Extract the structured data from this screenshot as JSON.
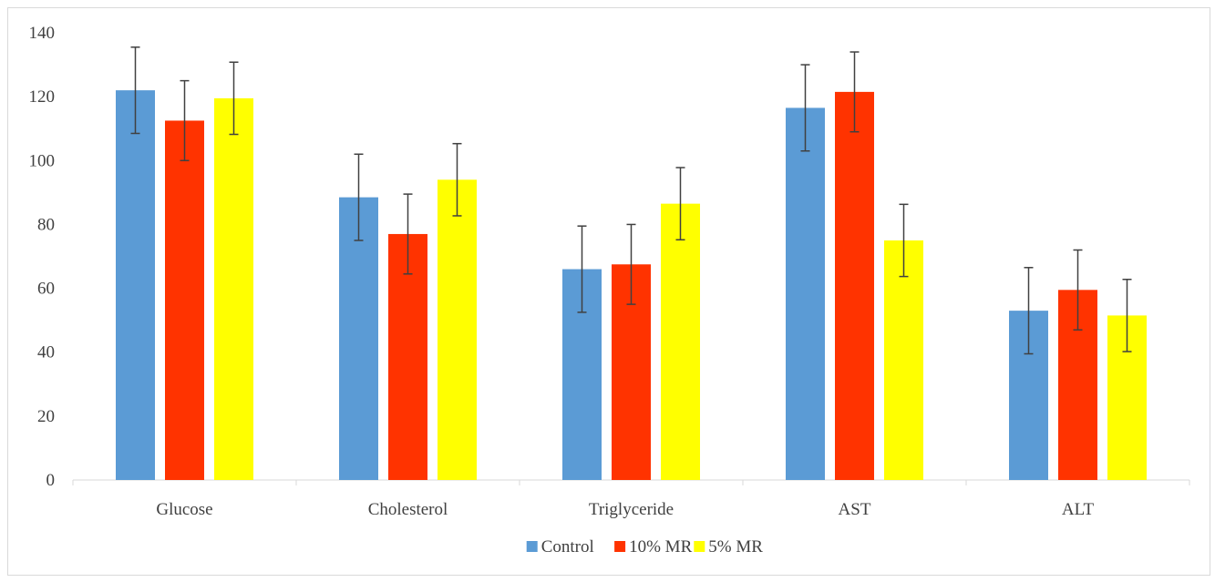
{
  "chart_data": {
    "type": "bar",
    "title": "",
    "xlabel": "",
    "ylabel": "",
    "categories": [
      "Glucose",
      "Cholesterol",
      "Triglyceride",
      "AST",
      "ALT"
    ],
    "ylim": [
      0,
      140
    ],
    "yticks": [
      0,
      20,
      40,
      60,
      80,
      100,
      120,
      140
    ],
    "grid": false,
    "legend_position": "bottom",
    "series": [
      {
        "name": "Control",
        "color": "#5b9bd5",
        "values": [
          122,
          88.5,
          66,
          116.5,
          53
        ],
        "errors": [
          13.5,
          13.5,
          13.5,
          13.5,
          13.5
        ]
      },
      {
        "name": "10% MR",
        "color": "#ff3300",
        "values": [
          112.5,
          77,
          67.5,
          121.5,
          59.5
        ],
        "errors": [
          12.5,
          12.5,
          12.5,
          12.5,
          12.5
        ]
      },
      {
        "name": "5% MR",
        "color": "#ffff00",
        "values": [
          119.5,
          94,
          86.5,
          75,
          51.5
        ],
        "errors": [
          11.3,
          11.3,
          11.3,
          11.3,
          11.3
        ]
      }
    ]
  }
}
